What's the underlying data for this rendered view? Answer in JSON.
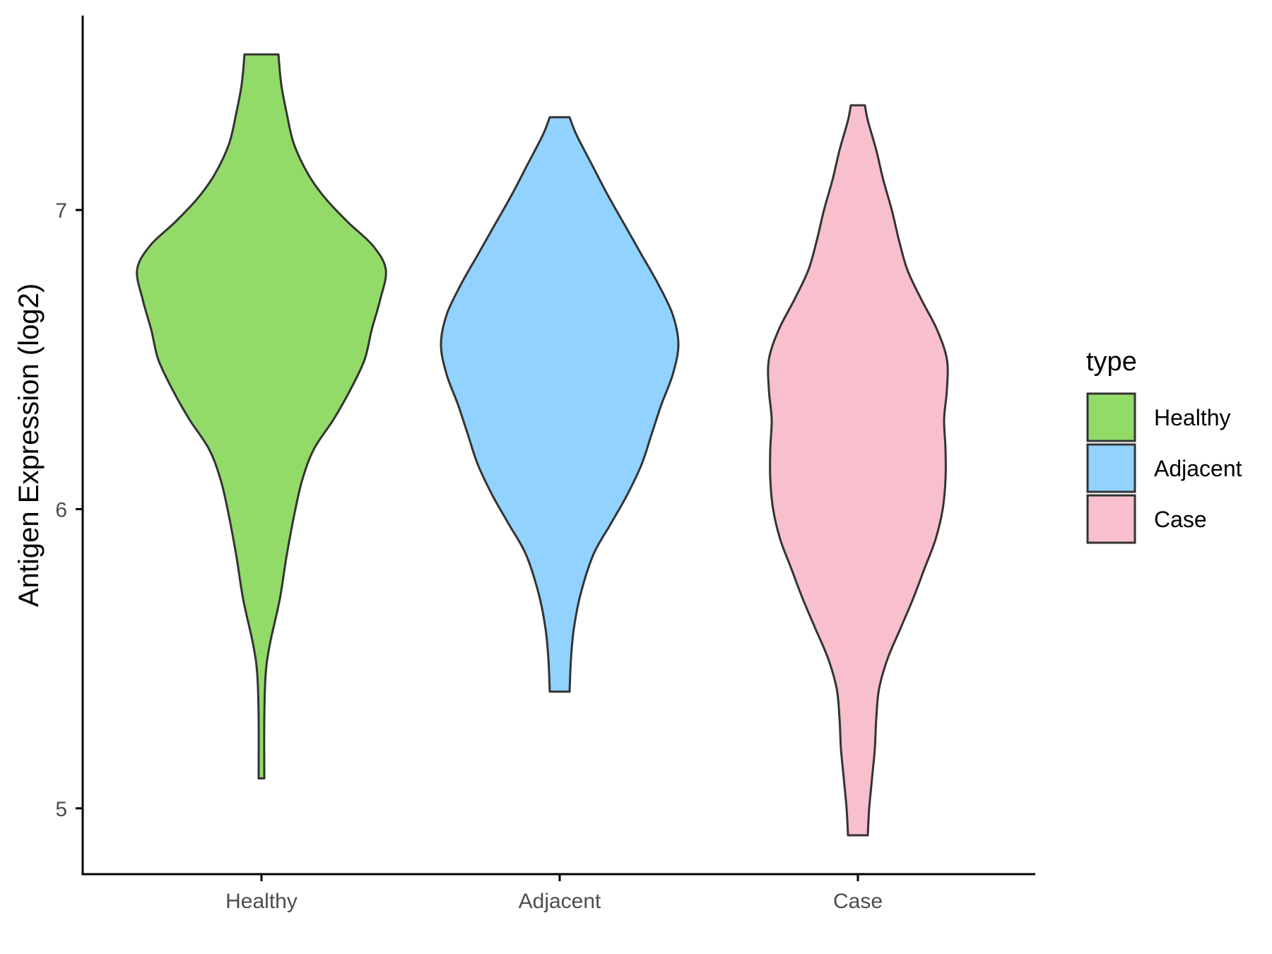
{
  "chart_data": {
    "type": "violin",
    "title": "",
    "xlabel": "",
    "ylabel": "Antigen Expression (log2)",
    "ylim": [
      4.78,
      7.65
    ],
    "yticks": [
      5,
      6,
      7
    ],
    "categories": [
      "Healthy",
      "Adjacent",
      "Case"
    ],
    "legend": {
      "title": "type",
      "position": "right",
      "entries": [
        "Healthy",
        "Adjacent",
        "Case"
      ]
    },
    "grid": false,
    "series": [
      {
        "name": "Healthy",
        "color": "#93DB69",
        "min": 5.1,
        "max": 7.52,
        "density_profile": [
          [
            5.1,
            0.02
          ],
          [
            5.3,
            0.02
          ],
          [
            5.45,
            0.03
          ],
          [
            5.55,
            0.06
          ],
          [
            5.7,
            0.13
          ],
          [
            5.85,
            0.18
          ],
          [
            6.0,
            0.24
          ],
          [
            6.1,
            0.29
          ],
          [
            6.2,
            0.37
          ],
          [
            6.3,
            0.51
          ],
          [
            6.4,
            0.63
          ],
          [
            6.5,
            0.73
          ],
          [
            6.6,
            0.78
          ],
          [
            6.7,
            0.84
          ],
          [
            6.8,
            0.88
          ],
          [
            6.88,
            0.79
          ],
          [
            6.96,
            0.61
          ],
          [
            7.04,
            0.45
          ],
          [
            7.12,
            0.33
          ],
          [
            7.22,
            0.23
          ],
          [
            7.32,
            0.18
          ],
          [
            7.42,
            0.14
          ],
          [
            7.52,
            0.12
          ]
        ]
      },
      {
        "name": "Adjacent",
        "color": "#92D2FF",
        "min": 5.39,
        "max": 7.31,
        "density_profile": [
          [
            5.39,
            0.07
          ],
          [
            5.5,
            0.08
          ],
          [
            5.6,
            0.1
          ],
          [
            5.72,
            0.15
          ],
          [
            5.85,
            0.24
          ],
          [
            5.95,
            0.36
          ],
          [
            6.05,
            0.48
          ],
          [
            6.15,
            0.58
          ],
          [
            6.25,
            0.65
          ],
          [
            6.35,
            0.72
          ],
          [
            6.45,
            0.8
          ],
          [
            6.55,
            0.84
          ],
          [
            6.65,
            0.8
          ],
          [
            6.75,
            0.7
          ],
          [
            6.85,
            0.58
          ],
          [
            6.95,
            0.46
          ],
          [
            7.05,
            0.34
          ],
          [
            7.15,
            0.23
          ],
          [
            7.25,
            0.12
          ],
          [
            7.31,
            0.07
          ]
        ]
      },
      {
        "name": "Case",
        "color": "#F7C0CC",
        "min": 4.91,
        "max": 7.35,
        "density_profile": [
          [
            4.91,
            0.07
          ],
          [
            5.0,
            0.08
          ],
          [
            5.1,
            0.1
          ],
          [
            5.2,
            0.12
          ],
          [
            5.3,
            0.13
          ],
          [
            5.4,
            0.15
          ],
          [
            5.5,
            0.21
          ],
          [
            5.6,
            0.3
          ],
          [
            5.7,
            0.39
          ],
          [
            5.8,
            0.47
          ],
          [
            5.9,
            0.55
          ],
          [
            6.0,
            0.6
          ],
          [
            6.1,
            0.62
          ],
          [
            6.2,
            0.62
          ],
          [
            6.3,
            0.61
          ],
          [
            6.4,
            0.63
          ],
          [
            6.5,
            0.63
          ],
          [
            6.6,
            0.56
          ],
          [
            6.7,
            0.45
          ],
          [
            6.8,
            0.35
          ],
          [
            6.9,
            0.29
          ],
          [
            7.0,
            0.24
          ],
          [
            7.1,
            0.18
          ],
          [
            7.2,
            0.13
          ],
          [
            7.3,
            0.07
          ],
          [
            7.35,
            0.05
          ]
        ]
      }
    ]
  }
}
